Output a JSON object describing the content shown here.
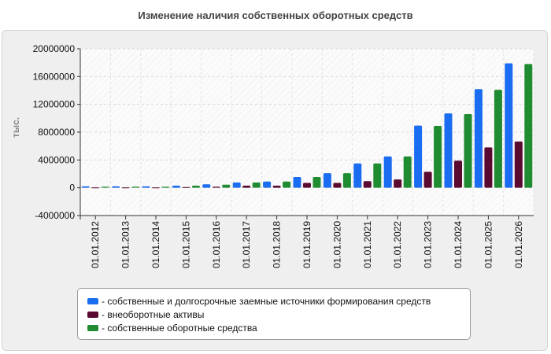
{
  "chart_data": {
    "type": "bar",
    "title": "Изменение наличия собственных оборотных средств",
    "ylabel": "тыс.",
    "xlabel": "",
    "ylim": [
      -4000000,
      20000000
    ],
    "yticks": [
      -4000000,
      0,
      4000000,
      8000000,
      12000000,
      16000000,
      20000000
    ],
    "ytick_labels": [
      "-4000000",
      "0",
      "4000000",
      "8000000",
      "12000000",
      "16000000",
      "20000000"
    ],
    "grid": true,
    "legend_position": "bottom",
    "categories": [
      "01.01.2012",
      "01.01.2013",
      "01.01.2014",
      "01.01.2015",
      "01.01.2016",
      "01.01.2017",
      "01.01.2018",
      "01.01.2019",
      "01.01.2020",
      "01.01.2021",
      "01.01.2022",
      "01.01.2023",
      "01.01.2024",
      "01.01.2025",
      "01.01.2026"
    ],
    "series": [
      {
        "name": "- собственные и долгосрочные заемные источники формирования средств",
        "color": "#1a6cf0",
        "values": [
          200000,
          200000,
          200000,
          300000,
          500000,
          750000,
          900000,
          1550000,
          2100000,
          3500000,
          4500000,
          8950000,
          10700000,
          14200000,
          17900000
        ]
      },
      {
        "name": "- внеоборотные активы",
        "color": "#5a0a30",
        "values": [
          50000,
          50000,
          50000,
          100000,
          150000,
          300000,
          300000,
          700000,
          700000,
          950000,
          1200000,
          2300000,
          3900000,
          5800000,
          6650000
        ]
      },
      {
        "name": "- собственные оборотные средства",
        "color": "#1f8c32",
        "values": [
          150000,
          150000,
          150000,
          300000,
          450000,
          750000,
          900000,
          1550000,
          2100000,
          3500000,
          4500000,
          8900000,
          10600000,
          14100000,
          17800000
        ]
      }
    ]
  }
}
